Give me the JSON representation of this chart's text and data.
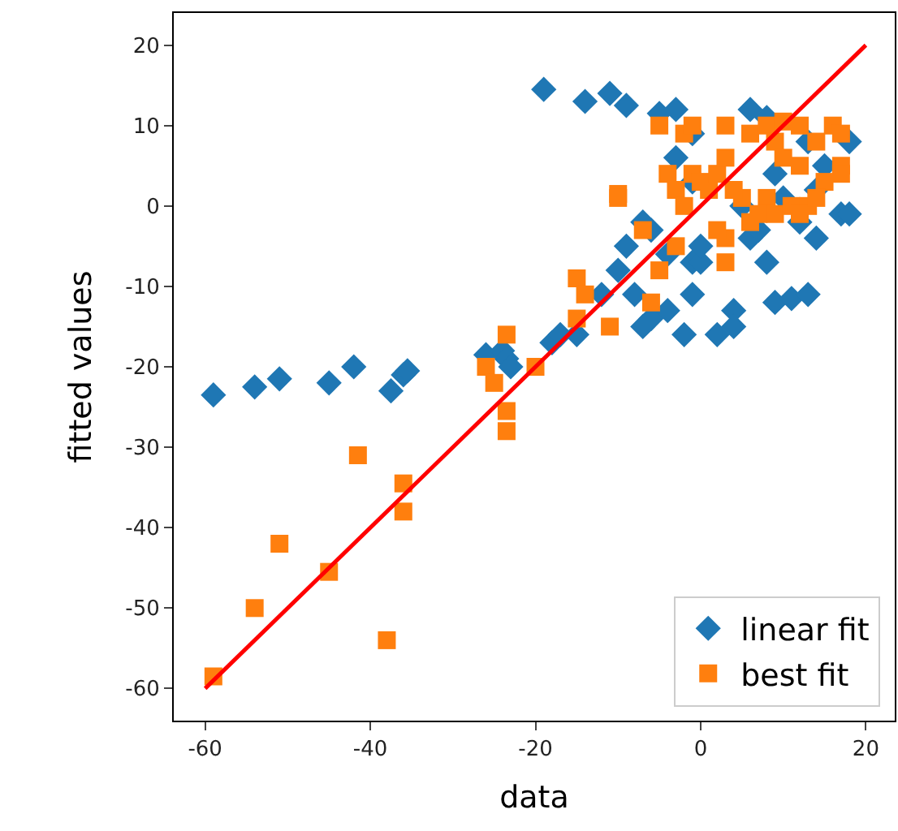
{
  "chart_data": {
    "type": "scatter",
    "xlabel": "data",
    "ylabel": "fitted values",
    "xlim": [
      -63.8,
      23.5
    ],
    "ylim": [
      -64,
      24
    ],
    "xticks": [
      -60,
      -40,
      -20,
      0,
      20
    ],
    "yticks": [
      -60,
      -50,
      -40,
      -30,
      -20,
      -10,
      0,
      10,
      20
    ],
    "legend": "bottom right",
    "series": [
      {
        "name": "linear fit",
        "color": "#1f77b4",
        "marker": "diamond",
        "x": [
          -59,
          -54,
          -51,
          -45,
          -42,
          -37.5,
          -36,
          -35.5,
          -26,
          -24,
          -23.5,
          -23,
          -19,
          -14,
          -11,
          -9,
          -5,
          -3,
          -18,
          -17,
          -15,
          -12,
          -10,
          -9,
          -8,
          -7,
          -6,
          -4,
          -2,
          -1,
          -1,
          0,
          2,
          4,
          4,
          6,
          7,
          8,
          9,
          11,
          13,
          14,
          14,
          17,
          18,
          18,
          13,
          8,
          6,
          -1,
          -3,
          5,
          10,
          12,
          9,
          -6,
          -4,
          -7,
          -1,
          0,
          15
        ],
        "values": [
          -23.5,
          -22.5,
          -21.5,
          -22,
          -20,
          -23,
          -21,
          -20.5,
          -18.5,
          -18,
          -19,
          -20,
          14.5,
          13,
          14,
          12.5,
          11.5,
          12,
          -17,
          -16,
          -16,
          -11,
          -8,
          -5,
          -11,
          -15,
          -14,
          -13,
          -16,
          -11,
          -7,
          -7,
          -16,
          -13,
          -15,
          -4,
          -3,
          -7,
          -12,
          -11.5,
          -11,
          -4,
          2,
          -1,
          -1,
          8,
          8,
          11,
          12,
          9,
          6,
          0,
          1,
          -2,
          4,
          -3,
          -6,
          -2,
          3,
          -5,
          5
        ]
      },
      {
        "name": "best fit",
        "color": "#ff7f0e",
        "marker": "square",
        "x": [
          -59,
          -54,
          -51,
          -45,
          -41.5,
          -38,
          -36,
          -36,
          -26,
          -25,
          -23.5,
          -23.5,
          -23.5,
          -20,
          -15,
          -15,
          -14,
          -11,
          -10,
          -10,
          -6,
          -5,
          -7,
          -5,
          -2,
          -1,
          -4,
          -3,
          -2,
          -1,
          0,
          1,
          2,
          3,
          3,
          6,
          8,
          9,
          10,
          12,
          14,
          16,
          17,
          17,
          17,
          15,
          12,
          10,
          8,
          7,
          9,
          11,
          13,
          12,
          14,
          6,
          3,
          3,
          2,
          -3,
          5,
          4
        ],
        "values": [
          -58.5,
          -50,
          -42,
          -45.5,
          -31,
          -54,
          -34.5,
          -38,
          -20,
          -22,
          -16,
          -25.5,
          -28,
          -20,
          -9,
          -14,
          -11,
          -15,
          1.5,
          1,
          -12,
          -8,
          -3,
          10,
          9,
          10,
          4,
          2,
          0,
          4,
          3,
          2,
          4,
          6,
          10,
          9,
          10,
          8,
          10.5,
          10,
          8,
          10,
          9,
          5,
          4,
          3,
          5,
          6,
          1,
          -1,
          -1,
          0,
          0,
          -1,
          1,
          -2,
          -4,
          -7,
          -3,
          -5,
          1,
          2
        ]
      },
      {
        "type": "line",
        "color": "#ff0000",
        "marker": "none",
        "x": [
          -60,
          20
        ],
        "values": [
          -60,
          20
        ]
      }
    ]
  }
}
